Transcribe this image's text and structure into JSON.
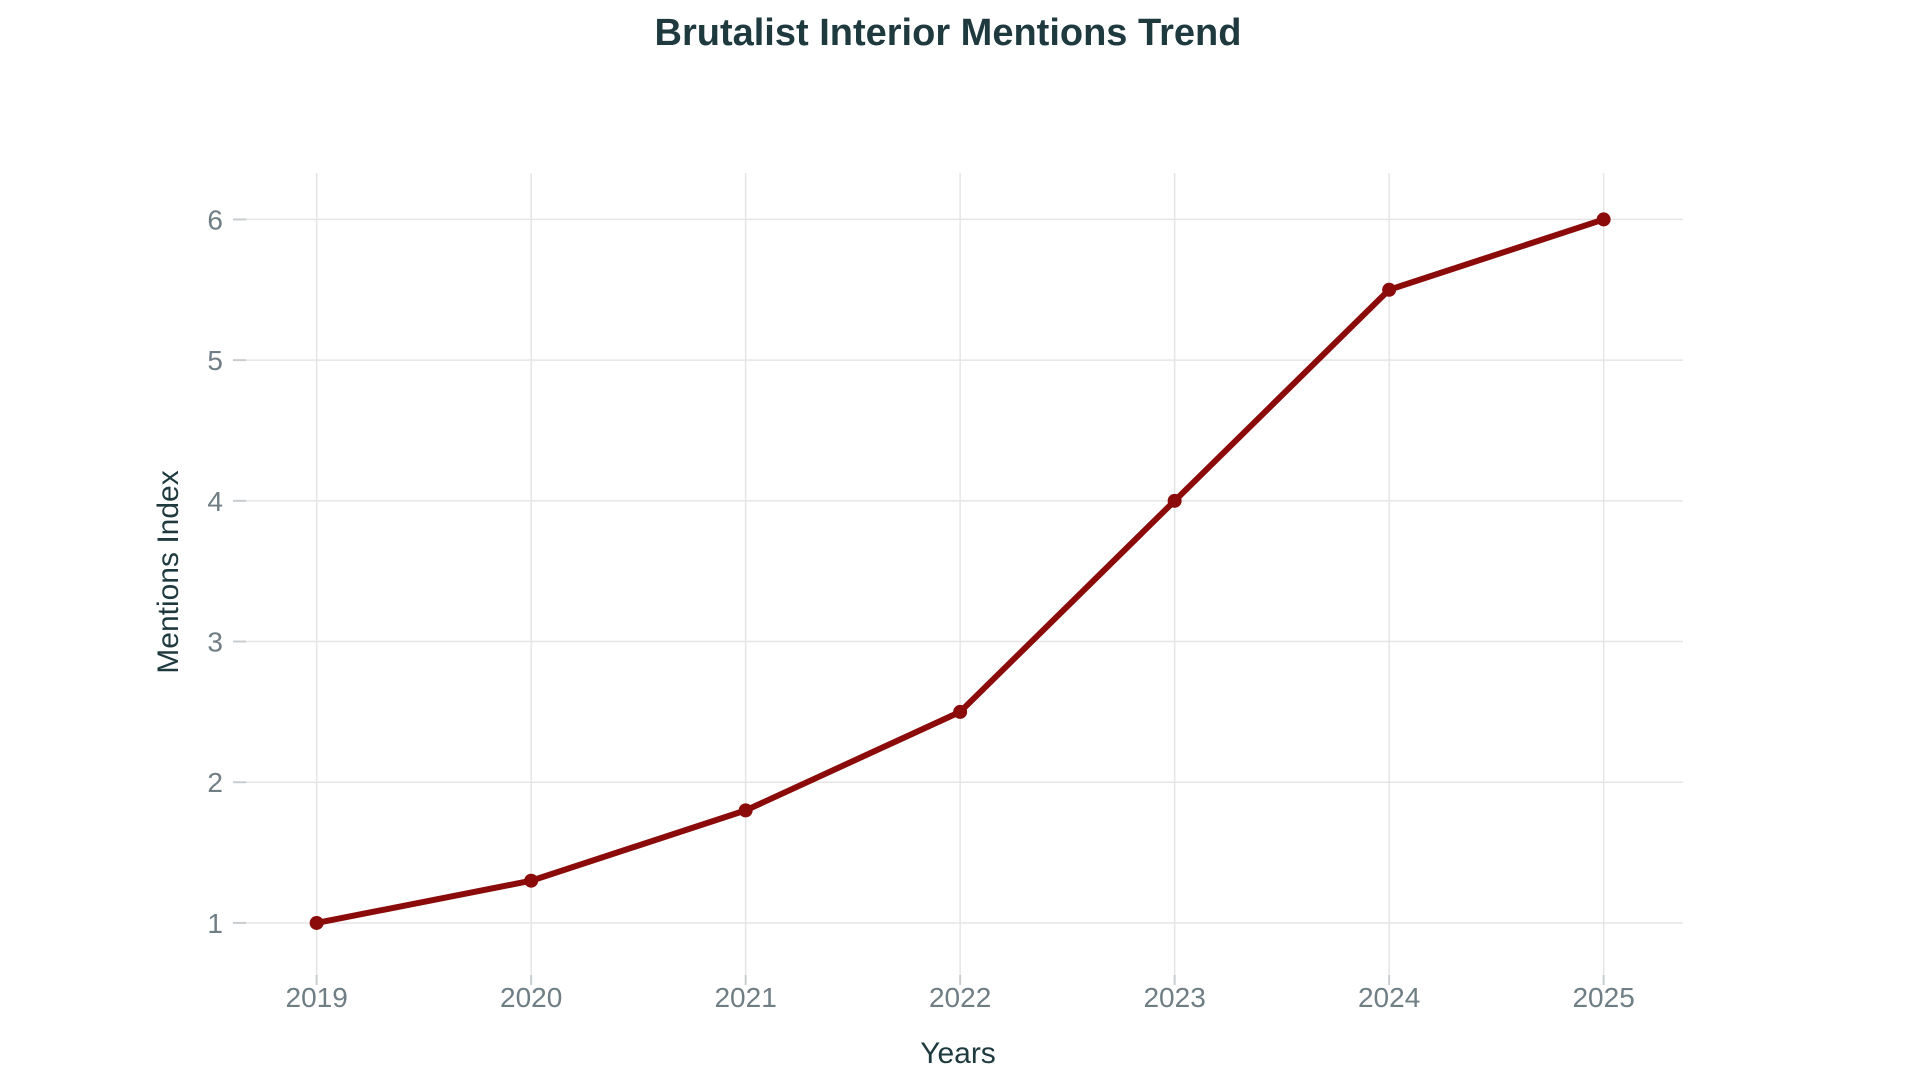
{
  "figure": {
    "background": "#FFFFFF"
  },
  "chart_data": {
    "type": "line",
    "title": "Brutalist Interior Mentions Trend",
    "xlabel": "Years",
    "ylabel": "Mentions Index",
    "x": [
      2019,
      2020,
      2021,
      2022,
      2023,
      2024,
      2025
    ],
    "xticks": [
      2019,
      2020,
      2021,
      2022,
      2023,
      2024,
      2025
    ],
    "yticks": [
      1,
      2,
      3,
      4,
      5,
      6
    ],
    "xlim": [
      2018.61,
      2025.37
    ],
    "ylim": [
      0.63,
      6.33
    ],
    "grid": true,
    "legend": false,
    "series": [
      {
        "name": "Mentions Index",
        "values": [
          1.0,
          1.3,
          1.8,
          2.5,
          4.0,
          5.5,
          6.0
        ],
        "color": "#8B0B0B",
        "marker": "circle",
        "marker_radius": 7,
        "line_width": 6
      }
    ],
    "colors": {
      "title": "#1E3A3F",
      "axis_label": "#1E3A3F",
      "tick_label": "#6F7D85",
      "gridline": "#E5E5E5",
      "tick_mark": "#C9CDD0",
      "background": "#FFFFFF"
    }
  }
}
